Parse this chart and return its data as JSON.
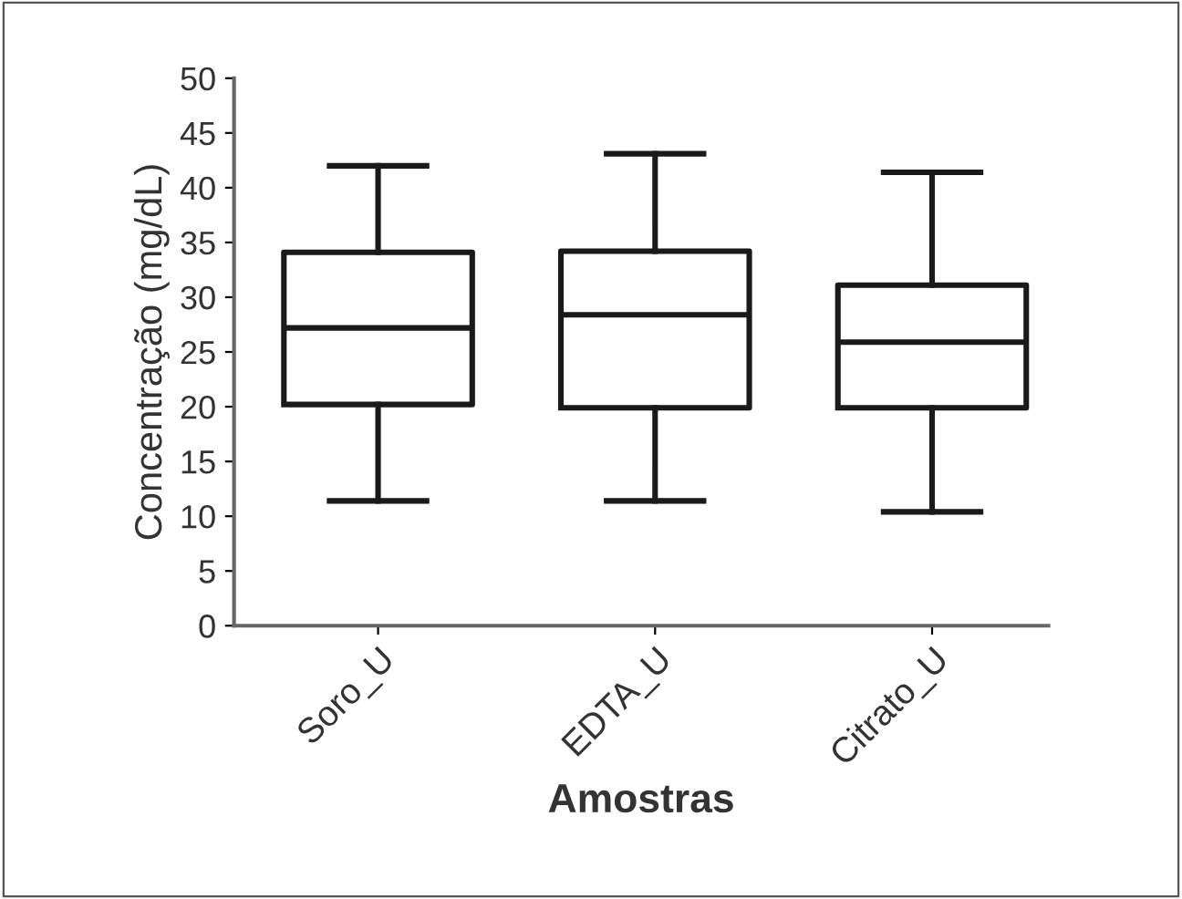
{
  "chart_data": {
    "type": "box",
    "categories": [
      "Soro_U",
      "EDTA_U",
      "Citrato_U"
    ],
    "boxes": [
      {
        "low": 11.4,
        "q1": 20.2,
        "median": 27.2,
        "q3": 34.1,
        "high": 42.0
      },
      {
        "low": 11.4,
        "q1": 19.9,
        "median": 28.4,
        "q3": 34.2,
        "high": 43.1
      },
      {
        "low": 10.4,
        "q1": 19.9,
        "median": 25.9,
        "q3": 31.1,
        "high": 41.4
      }
    ],
    "xlabel": "Amostras",
    "ylabel": "Concentração (mg/dL)",
    "ylim": [
      0,
      50
    ],
    "yticks": [
      0,
      5,
      10,
      15,
      20,
      25,
      30,
      35,
      40,
      45,
      50
    ],
    "grid": false,
    "legend": false
  }
}
